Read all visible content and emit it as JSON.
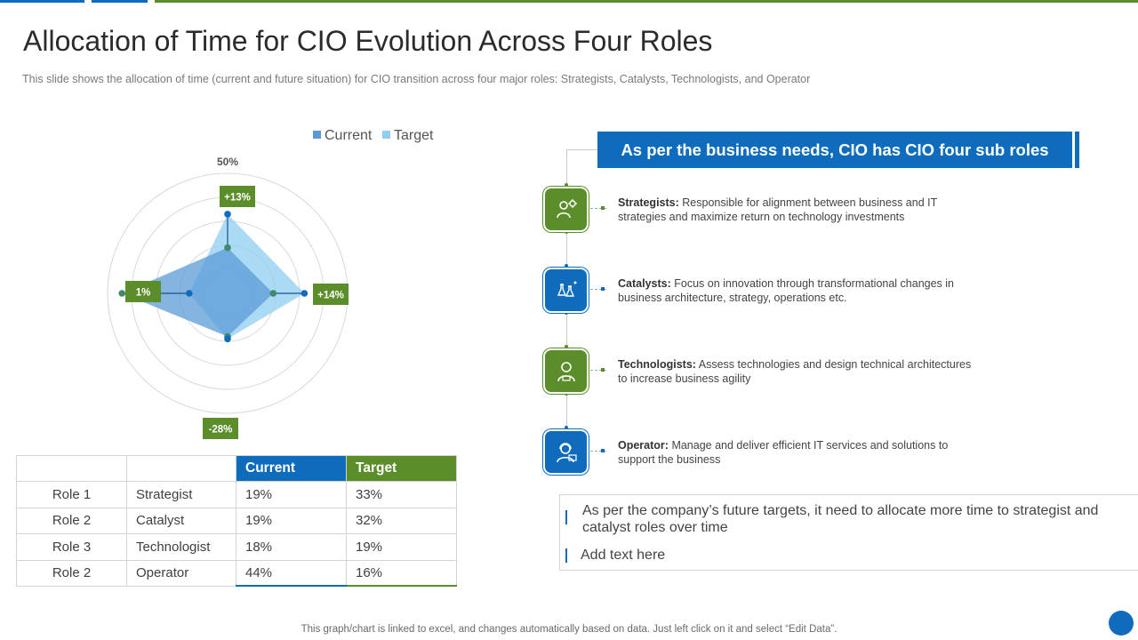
{
  "header": {
    "title": "Allocation of Time for CIO Evolution Across Four Roles",
    "subtitle": "This slide shows the allocation of time (current and future situation) for CIO transition across four major roles: Strategists, Catalysts, Technologists, and Operator"
  },
  "colors": {
    "blue": "#0f6cbd",
    "green": "#5b8e2b",
    "current_fill": "#5b9bd5",
    "target_fill": "#8fcdf2"
  },
  "chart_data": {
    "type": "radar",
    "categories": [
      "Strategist",
      "Catalyst",
      "Technologist",
      "Operator"
    ],
    "series": [
      {
        "name": "Current",
        "values": [
          19,
          19,
          18,
          44
        ]
      },
      {
        "name": "Target",
        "values": [
          33,
          32,
          19,
          16
        ]
      }
    ],
    "rmax": 50,
    "top_tick_label": "50%",
    "legend_position": "top",
    "change_labels": [
      "+13%",
      "+14%",
      "-28%",
      "1%"
    ]
  },
  "table": {
    "headers": [
      "",
      "",
      "Current",
      "Target"
    ],
    "rows": [
      [
        "Role 1",
        "Strategist",
        "19%",
        "33%"
      ],
      [
        "Role 2",
        "Catalyst",
        "19%",
        "32%"
      ],
      [
        "Role 3",
        "Technologist",
        "18%",
        "19%"
      ],
      [
        "Role 2",
        "Operator",
        "44%",
        "16%"
      ]
    ]
  },
  "roles_panel": {
    "banner": "As per the business needs, CIO has CIO four sub roles",
    "items": [
      {
        "title": "Strategists:",
        "text": "Responsible for alignment between business and IT strategies and maximize return on technology investments",
        "icon": "strategist-icon"
      },
      {
        "title": "Catalysts:",
        "text": "Focus on innovation through transformational changes in business architecture, strategy, operations etc.",
        "icon": "catalyst-icon"
      },
      {
        "title": "Technologists:",
        "text": "Assess technologies and design technical architectures to increase business agility",
        "icon": "technologist-icon"
      },
      {
        "title": "Operator:",
        "text": "Manage and deliver efficient IT services and solutions to support the business",
        "icon": "operator-icon"
      }
    ]
  },
  "notes": {
    "line1": "As per the company’s future targets, it need to allocate more time to strategist and catalyst roles over time",
    "line2": "Add text here"
  },
  "footer": "This graph/chart is linked to excel, and changes automatically based on data. Just left click on it and select “Edit Data”."
}
